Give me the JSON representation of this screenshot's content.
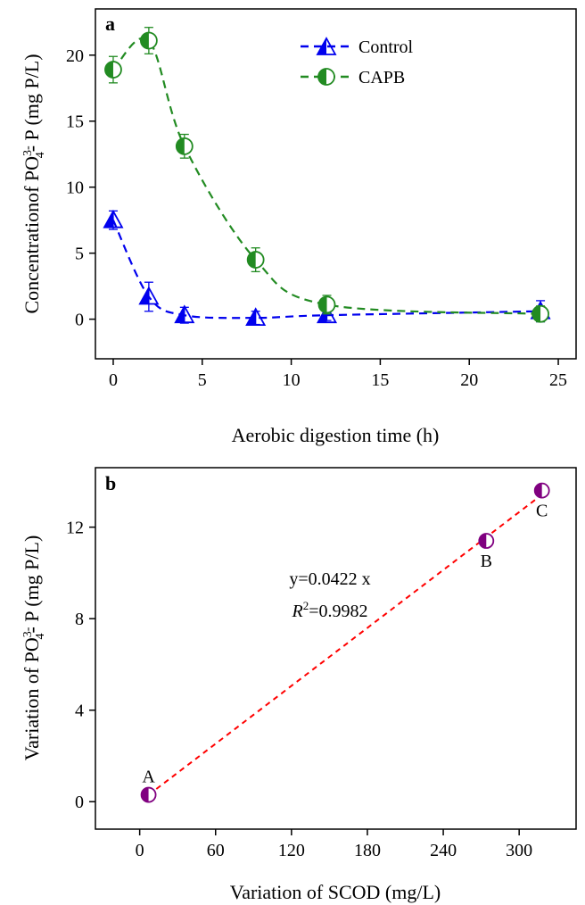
{
  "chart_data": [
    {
      "panel": "a",
      "type": "line",
      "xlabel": "Aerobic digestion time (h)",
      "ylabel": {
        "prefix": "Concentrationof PO",
        "sup": "3-",
        "sub": "4",
        "suffix": "- P (mg P/L)"
      },
      "xlim": [
        -1,
        26
      ],
      "ylim": [
        -3,
        23.5
      ],
      "xticks": [
        0,
        5,
        10,
        15,
        20,
        25
      ],
      "yticks": [
        0,
        5,
        10,
        15,
        20
      ],
      "legend_position": "top-center",
      "series": [
        {
          "name": "Control",
          "color": "#0000ee",
          "marker": "half-filled-triangle",
          "line": "dashed",
          "x": [
            0,
            2,
            4,
            8,
            12,
            24
          ],
          "y": [
            7.5,
            1.7,
            0.3,
            0.1,
            0.3,
            0.6
          ],
          "err": [
            0.7,
            1.1,
            0.6,
            0.5,
            0.4,
            0.8
          ]
        },
        {
          "name": "CAPB",
          "color": "#228b22",
          "marker": "half-filled-circle",
          "line": "dashed",
          "x": [
            0,
            2,
            4,
            8,
            12,
            24
          ],
          "y": [
            18.9,
            21.1,
            13.1,
            4.5,
            1.1,
            0.4
          ],
          "err": [
            1.0,
            1.0,
            0.9,
            0.9,
            0.7,
            0.6
          ]
        }
      ]
    },
    {
      "panel": "b",
      "type": "scatter",
      "xlabel": "Variation of SCOD (mg/L)",
      "ylabel": {
        "prefix": "Variation of PO",
        "sup": "3-",
        "sub": "4",
        "suffix": "- P (mg P/L)"
      },
      "xlim": [
        -35,
        345
      ],
      "ylim": [
        -1.2,
        14.6
      ],
      "xticks": [
        0,
        60,
        120,
        180,
        240,
        300
      ],
      "yticks": [
        0,
        4,
        8,
        12
      ],
      "points": [
        {
          "label": "A",
          "x": 7,
          "y": 0.3
        },
        {
          "label": "B",
          "x": 274,
          "y": 11.4
        },
        {
          "label": "C",
          "x": 318,
          "y": 13.6
        }
      ],
      "marker_color": "#800080",
      "fit": {
        "slope": 0.0422,
        "x_range": [
          7,
          318
        ],
        "color": "#ff0000",
        "equation": "y=0.0422 x",
        "r2_symbol": "R",
        "r2_sup": "2",
        "r2_value": "=0.9982"
      }
    }
  ]
}
